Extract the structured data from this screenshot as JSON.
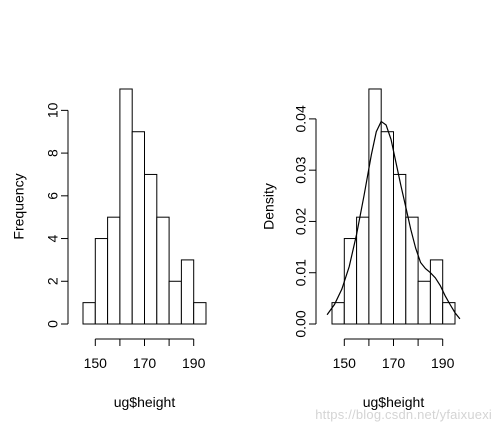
{
  "chart_data": [
    {
      "type": "bar",
      "subtype": "histogram",
      "bins": [
        [
          145,
          150
        ],
        [
          150,
          155
        ],
        [
          155,
          160
        ],
        [
          160,
          165
        ],
        [
          165,
          170
        ],
        [
          170,
          175
        ],
        [
          175,
          180
        ],
        [
          180,
          185
        ],
        [
          185,
          190
        ],
        [
          190,
          195
        ]
      ],
      "values": [
        1,
        4,
        5,
        11,
        9,
        7,
        5,
        2,
        3,
        1
      ],
      "xlabel": "ug$height",
      "ylabel": "Frequency",
      "xlim": [
        145,
        195
      ],
      "ylim": [
        0,
        11
      ],
      "x_ticks": [
        150,
        170,
        190
      ],
      "x_ticks_minor": [
        150,
        160,
        170,
        180,
        190
      ],
      "y_ticks": [
        0,
        2,
        4,
        6,
        8,
        10
      ],
      "grid": false,
      "colors": {
        "fill": "#ffffff",
        "stroke": "#000000"
      }
    },
    {
      "type": "bar",
      "subtype": "density-histogram",
      "bins": [
        [
          145,
          150
        ],
        [
          150,
          155
        ],
        [
          155,
          160
        ],
        [
          160,
          165
        ],
        [
          165,
          170
        ],
        [
          170,
          175
        ],
        [
          175,
          180
        ],
        [
          180,
          185
        ],
        [
          185,
          190
        ],
        [
          190,
          195
        ]
      ],
      "values": [
        0.0041667,
        0.0166667,
        0.0208333,
        0.0458333,
        0.0375,
        0.0291667,
        0.0208333,
        0.0083333,
        0.0125,
        0.0041667
      ],
      "density_curve": {
        "x": [
          143,
          146,
          149,
          152,
          155,
          158,
          161,
          163,
          165,
          167,
          169,
          171,
          173,
          175,
          177,
          179,
          181,
          183,
          185,
          187,
          189,
          191,
          193,
          195,
          197
        ],
        "y": [
          0.0018,
          0.0038,
          0.0068,
          0.0112,
          0.0175,
          0.025,
          0.033,
          0.0375,
          0.0395,
          0.0388,
          0.036,
          0.0315,
          0.027,
          0.0228,
          0.0185,
          0.0148,
          0.012,
          0.0108,
          0.01,
          0.009,
          0.0075,
          0.0055,
          0.0038,
          0.0022,
          0.001
        ]
      },
      "xlabel": "ug$height",
      "ylabel": "Density",
      "xlim": [
        145,
        195
      ],
      "ylim": [
        0,
        0.04583
      ],
      "x_ticks": [
        150,
        170,
        190
      ],
      "x_ticks_minor": [
        150,
        160,
        170,
        180,
        190
      ],
      "y_ticks": [
        "0.00",
        "0.01",
        "0.02",
        "0.03",
        "0.04"
      ],
      "grid": false,
      "colors": {
        "fill": "#ffffff",
        "stroke": "#000000",
        "curve": "#000000"
      }
    }
  ],
  "watermark": "https://blog.csdn.net/yfaixuexi"
}
